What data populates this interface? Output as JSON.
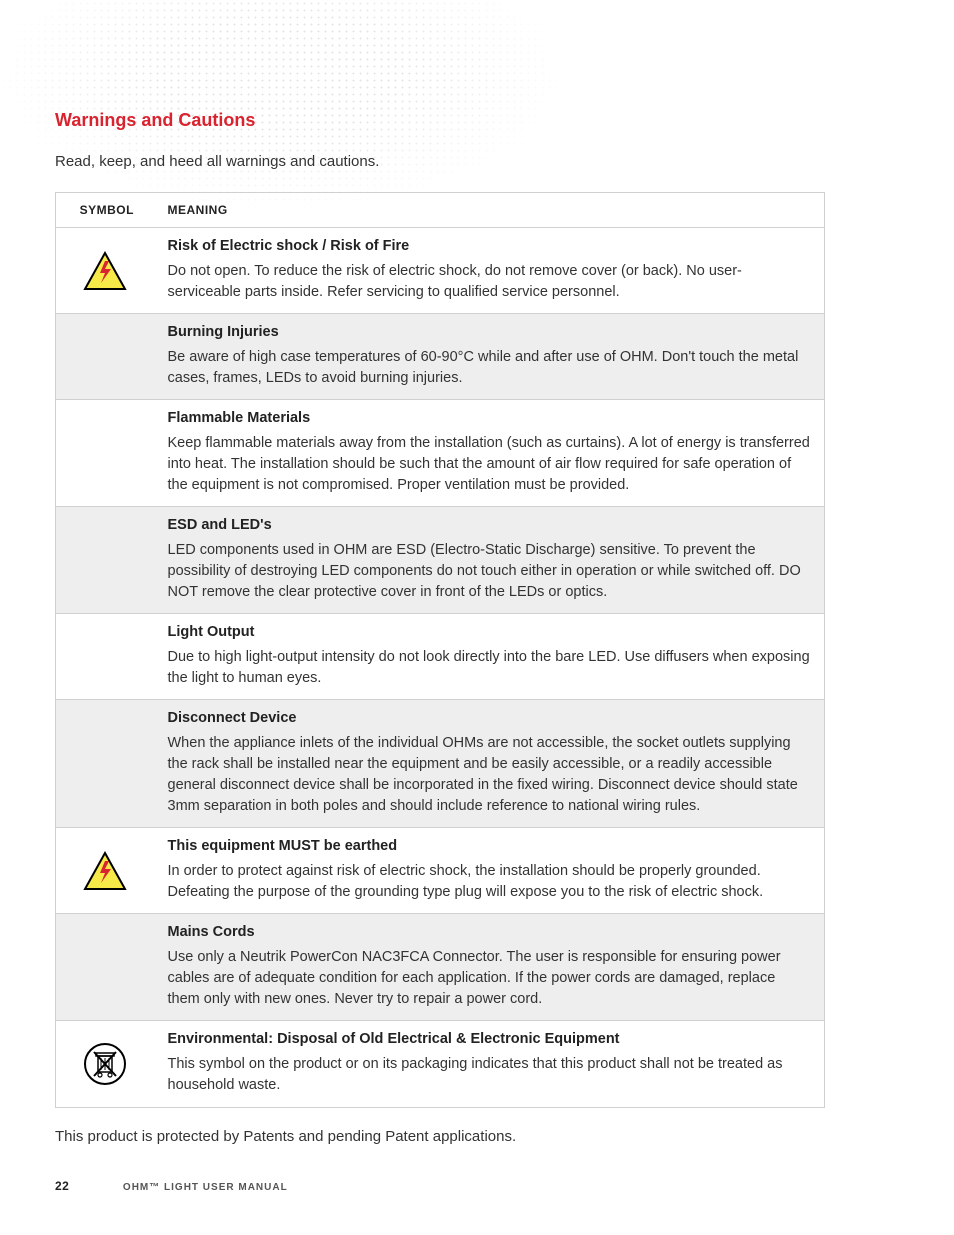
{
  "section_title": "Warnings and Cautions",
  "intro": "Read, keep, and heed all warnings and cautions.",
  "table": {
    "headers": {
      "symbol": "SYMBOL",
      "meaning": "MEANING"
    },
    "rows": [
      {
        "icon": "shock",
        "title": "Risk of Electric shock / Risk of Fire",
        "body": "Do not open. To reduce the risk of electric shock, do not remove cover (or back). No user-serviceable parts inside. Refer servicing to qualified service personnel."
      },
      {
        "icon": "",
        "title": "Burning Injuries",
        "body": "Be aware of high case temperatures of 60-90°C while and after use of OHM. Don't touch the metal cases, frames, LEDs to avoid burning injuries."
      },
      {
        "icon": "",
        "title": "Flammable Materials",
        "body": "Keep flammable materials away from the installation (such as curtains). A lot of energy is transferred into heat. The installation should be such that the amount of air flow required for safe operation of the equipment is not compromised. Proper ventilation must be provided."
      },
      {
        "icon": "",
        "title": "ESD and LED's",
        "body": "LED components used in OHM are ESD (Electro-Static Discharge) sensitive. To prevent the possibility of destroying LED components do not touch either in operation or while switched off. DO NOT remove the clear protective cover in front of the LEDs or optics."
      },
      {
        "icon": "",
        "title": "Light Output",
        "body": "Due to high light-output intensity do not look directly into the bare LED. Use diffusers when exposing the light to human eyes."
      },
      {
        "icon": "",
        "title": "Disconnect Device",
        "body": "When the appliance inlets of the individual OHMs are not accessible, the socket outlets supplying the rack shall be installed near the equipment and be easily accessible, or a readily accessible general disconnect device shall be incorporated in the fixed wiring. Disconnect device should state 3mm separation in both poles and should include reference to national wiring rules."
      },
      {
        "icon": "shock",
        "title": "This equipment MUST be earthed",
        "body": "In order to protect against risk of electric shock, the installation should be properly grounded. Defeating the purpose of the grounding type plug will expose you to the risk of electric shock."
      },
      {
        "icon": "",
        "title": "Mains Cords",
        "body": "Use only a Neutrik PowerCon NAC3FCA Connector. The user is responsible for ensuring power cables are of adequate condition for each application. If the power cords are damaged, replace them only with new ones. Never try to repair a power cord."
      },
      {
        "icon": "weee",
        "title": "Environmental: Disposal of Old Electrical & Electronic Equipment",
        "body": "This symbol on the product or on its packaging indicates that this product shall not be treated as household waste."
      }
    ]
  },
  "after_note": "This product is protected by Patents and pending Patent applications.",
  "footer": {
    "page": "22",
    "doc": "OHM™ LIGHT USER MANUAL"
  },
  "colors": {
    "accent_red": "#d9232e",
    "shade_bg": "#eeeeee",
    "border": "#d0d0d0",
    "text": "#333333",
    "icon_yellow": "#f7e948",
    "icon_red": "#d9232e",
    "icon_black": "#000000"
  }
}
